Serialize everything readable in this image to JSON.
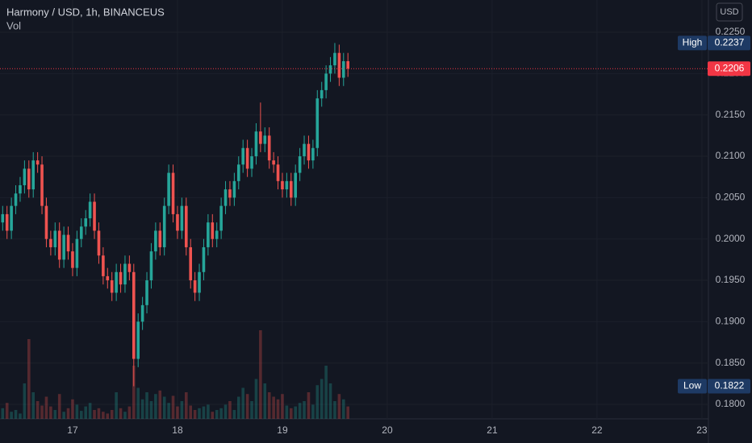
{
  "chart_data": {
    "type": "candlestick",
    "title": "Harmony / USD, 1h, BINANCEUS",
    "subtitle": "Vol",
    "currency": "USD",
    "up_color": "#26a69a",
    "down_color": "#ef5350",
    "grid": true,
    "x": [
      16.3333,
      16.375,
      16.4167,
      16.4583,
      16.5,
      16.5417,
      16.5833,
      16.625,
      16.6667,
      16.7083,
      16.75,
      16.7917,
      16.8333,
      16.875,
      16.9167,
      16.9583,
      17.0,
      17.0417,
      17.0833,
      17.125,
      17.1667,
      17.2083,
      17.25,
      17.2917,
      17.3333,
      17.375,
      17.4167,
      17.4583,
      17.5,
      17.5417,
      17.5833,
      17.625,
      17.6667,
      17.7083,
      17.75,
      17.7917,
      17.8333,
      17.875,
      17.9167,
      17.9583,
      18.0,
      18.0417,
      18.0833,
      18.125,
      18.1667,
      18.2083,
      18.25,
      18.2917,
      18.3333,
      18.375,
      18.4167,
      18.4583,
      18.5,
      18.5417,
      18.5833,
      18.625,
      18.6667,
      18.7083,
      18.75,
      18.7917,
      18.8333,
      18.875,
      18.9167,
      18.9583,
      19.0,
      19.0417,
      19.0833,
      19.125,
      19.1667,
      19.2083,
      19.25,
      19.2917,
      19.3333,
      19.375,
      19.4167,
      19.4583,
      19.5,
      19.5417,
      19.5833,
      19.625
    ],
    "open": [
      0.202,
      0.203,
      0.201,
      0.204,
      0.2055,
      0.2065,
      0.2085,
      0.206,
      0.2095,
      0.209,
      0.204,
      0.2,
      0.199,
      0.201,
      0.1975,
      0.2005,
      0.1985,
      0.1965,
      0.2,
      0.2015,
      0.2025,
      0.2045,
      0.201,
      0.198,
      0.1955,
      0.195,
      0.1935,
      0.196,
      0.1945,
      0.197,
      0.196,
      0.1855,
      0.19,
      0.192,
      0.195,
      0.1985,
      0.201,
      0.199,
      0.204,
      0.208,
      0.203,
      0.201,
      0.204,
      0.199,
      0.195,
      0.1935,
      0.196,
      0.199,
      0.202,
      0.2,
      0.201,
      0.204,
      0.206,
      0.205,
      0.207,
      0.209,
      0.211,
      0.2085,
      0.21,
      0.213,
      0.2115,
      0.2125,
      0.2095,
      0.209,
      0.207,
      0.206,
      0.207,
      0.205,
      0.208,
      0.21,
      0.2115,
      0.2095,
      0.211,
      0.217,
      0.218,
      0.22,
      0.221,
      0.2225,
      0.2195,
      0.2215
    ],
    "high": [
      0.204,
      0.204,
      0.205,
      0.2065,
      0.2075,
      0.2095,
      0.2095,
      0.2105,
      0.2105,
      0.21,
      0.205,
      0.201,
      0.202,
      0.202,
      0.2015,
      0.2015,
      0.1995,
      0.201,
      0.2025,
      0.2035,
      0.2055,
      0.2055,
      0.202,
      0.199,
      0.1965,
      0.196,
      0.197,
      0.197,
      0.198,
      0.198,
      0.197,
      0.191,
      0.193,
      0.196,
      0.1995,
      0.202,
      0.202,
      0.205,
      0.209,
      0.209,
      0.204,
      0.205,
      0.205,
      0.2,
      0.196,
      0.197,
      0.2,
      0.203,
      0.203,
      0.202,
      0.205,
      0.207,
      0.207,
      0.208,
      0.21,
      0.212,
      0.212,
      0.211,
      0.214,
      0.2165,
      0.2135,
      0.2135,
      0.2105,
      0.21,
      0.208,
      0.208,
      0.208,
      0.209,
      0.211,
      0.2125,
      0.2125,
      0.212,
      0.218,
      0.219,
      0.221,
      0.222,
      0.2237,
      0.2235,
      0.2225,
      0.2225
    ],
    "low": [
      0.201,
      0.2,
      0.2,
      0.203,
      0.2045,
      0.2055,
      0.205,
      0.205,
      0.208,
      0.203,
      0.199,
      0.198,
      0.198,
      0.1965,
      0.1965,
      0.1975,
      0.1955,
      0.1955,
      0.199,
      0.2005,
      0.2015,
      0.2,
      0.197,
      0.1945,
      0.194,
      0.1925,
      0.1925,
      0.1935,
      0.1935,
      0.195,
      0.1822,
      0.1845,
      0.189,
      0.191,
      0.194,
      0.1975,
      0.198,
      0.198,
      0.203,
      0.202,
      0.2,
      0.2,
      0.198,
      0.194,
      0.1925,
      0.1925,
      0.195,
      0.198,
      0.199,
      0.199,
      0.2,
      0.203,
      0.204,
      0.204,
      0.206,
      0.208,
      0.2075,
      0.2075,
      0.209,
      0.2105,
      0.2105,
      0.2085,
      0.208,
      0.206,
      0.205,
      0.205,
      0.204,
      0.204,
      0.207,
      0.209,
      0.2085,
      0.2085,
      0.21,
      0.216,
      0.217,
      0.219,
      0.22,
      0.2185,
      0.2185,
      0.2196
    ],
    "close": [
      0.203,
      0.201,
      0.204,
      0.2055,
      0.2065,
      0.2085,
      0.206,
      0.2095,
      0.209,
      0.204,
      0.2,
      0.199,
      0.201,
      0.1975,
      0.2005,
      0.1985,
      0.1965,
      0.2,
      0.2015,
      0.2025,
      0.2045,
      0.201,
      0.198,
      0.1955,
      0.195,
      0.1935,
      0.196,
      0.1945,
      0.197,
      0.196,
      0.1855,
      0.19,
      0.192,
      0.195,
      0.1985,
      0.201,
      0.199,
      0.204,
      0.208,
      0.203,
      0.201,
      0.204,
      0.199,
      0.195,
      0.1935,
      0.196,
      0.199,
      0.202,
      0.2,
      0.201,
      0.204,
      0.206,
      0.205,
      0.207,
      0.209,
      0.211,
      0.2085,
      0.21,
      0.213,
      0.2115,
      0.2125,
      0.2095,
      0.209,
      0.207,
      0.206,
      0.207,
      0.205,
      0.208,
      0.21,
      0.2115,
      0.2095,
      0.211,
      0.217,
      0.218,
      0.22,
      0.221,
      0.2225,
      0.2195,
      0.2215,
      0.2206
    ],
    "volume": [
      12,
      18,
      8,
      10,
      6,
      40,
      90,
      30,
      20,
      15,
      25,
      14,
      10,
      28,
      8,
      12,
      22,
      16,
      9,
      14,
      18,
      10,
      12,
      8,
      6,
      10,
      30,
      12,
      8,
      14,
      60,
      35,
      22,
      30,
      20,
      28,
      32,
      25,
      18,
      26,
      14,
      20,
      30,
      15,
      10,
      12,
      14,
      16,
      8,
      10,
      12,
      16,
      20,
      10,
      25,
      35,
      28,
      20,
      45,
      100,
      40,
      30,
      25,
      22,
      28,
      15,
      12,
      14,
      18,
      20,
      30,
      16,
      38,
      45,
      60,
      40,
      20,
      28,
      22,
      14
    ],
    "xlim": [
      16.308,
      23.062
    ],
    "xticks": [
      17,
      18,
      19,
      20,
      21,
      22,
      23
    ],
    "ylim": [
      0.17825,
      0.2289
    ],
    "yticks": [
      {
        "value": 0.18,
        "label": "0.1800"
      },
      {
        "value": 0.185,
        "label": "0.1850"
      },
      {
        "value": 0.19,
        "label": "0.1900"
      },
      {
        "value": 0.195,
        "label": "0.1950"
      },
      {
        "value": 0.2,
        "label": "0.2000"
      },
      {
        "value": 0.205,
        "label": "0.2050"
      },
      {
        "value": 0.21,
        "label": "0.2100"
      },
      {
        "value": 0.215,
        "label": "0.2150"
      },
      {
        "value": 0.22,
        "label": "0.2200"
      },
      {
        "value": 0.225,
        "label": "0.2250"
      }
    ],
    "high_marker": {
      "label": "High",
      "value": 0.2237,
      "value_label": "0.2237"
    },
    "low_marker": {
      "label": "Low",
      "value": 0.1822,
      "value_label": "0.1822"
    },
    "last_price": {
      "value": 0.2206,
      "value_label": "0.2206",
      "color": "#f23645"
    }
  }
}
